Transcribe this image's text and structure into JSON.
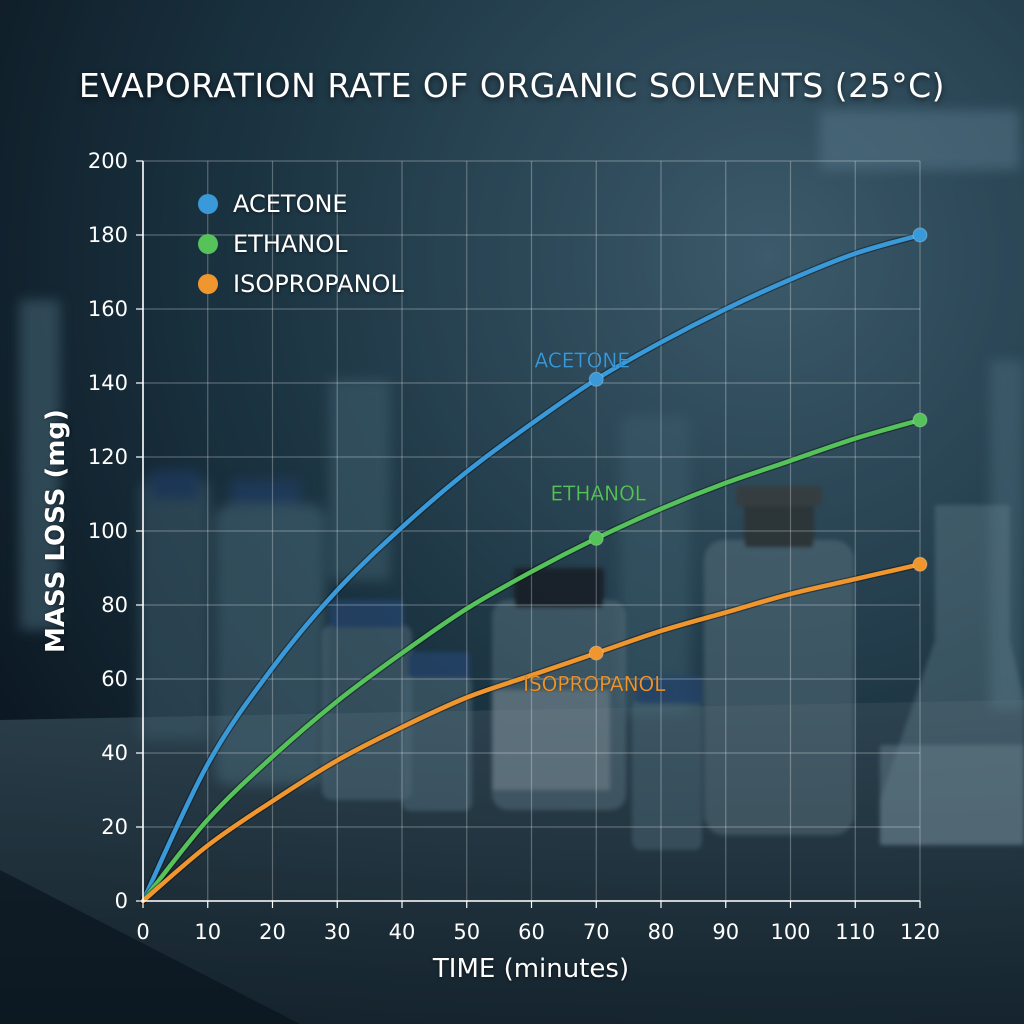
{
  "chart_data": {
    "type": "line",
    "title": "EVAPORATION RATE OF ORGANIC SOLVENTS (25°C)",
    "xlabel": "TIME (minutes)",
    "ylabel": "MASS LOSS (mg)",
    "xlim": [
      0,
      120
    ],
    "ylim": [
      0,
      200
    ],
    "x_ticks": [
      0,
      10,
      20,
      30,
      40,
      50,
      60,
      70,
      80,
      90,
      100,
      110,
      120
    ],
    "y_ticks": [
      0,
      20,
      40,
      60,
      80,
      100,
      120,
      140,
      160,
      180,
      200
    ],
    "grid": true,
    "legend_position": "top-left",
    "x": [
      0,
      10,
      20,
      30,
      40,
      50,
      60,
      70,
      80,
      90,
      100,
      110,
      120
    ],
    "series": [
      {
        "name": "ACETONE",
        "color": "#3a9ad9",
        "values": [
          0,
          37,
          63,
          84,
          101,
          116,
          129,
          141,
          151,
          160,
          168,
          175,
          180
        ],
        "markers": [
          [
            70,
            141
          ],
          [
            120,
            180
          ]
        ]
      },
      {
        "name": "ETHANOL",
        "color": "#56c25a",
        "values": [
          0,
          22,
          39,
          54,
          67,
          79,
          89,
          98,
          106,
          113,
          119,
          125,
          130
        ],
        "markers": [
          [
            70,
            98
          ],
          [
            120,
            130
          ]
        ]
      },
      {
        "name": "ISOPROPANOL",
        "color": "#f0962e",
        "values": [
          0,
          15,
          27,
          38,
          47,
          55,
          61,
          67,
          73,
          78,
          83,
          87,
          91
        ],
        "markers": [
          [
            70,
            67
          ],
          [
            120,
            91
          ]
        ]
      }
    ]
  }
}
